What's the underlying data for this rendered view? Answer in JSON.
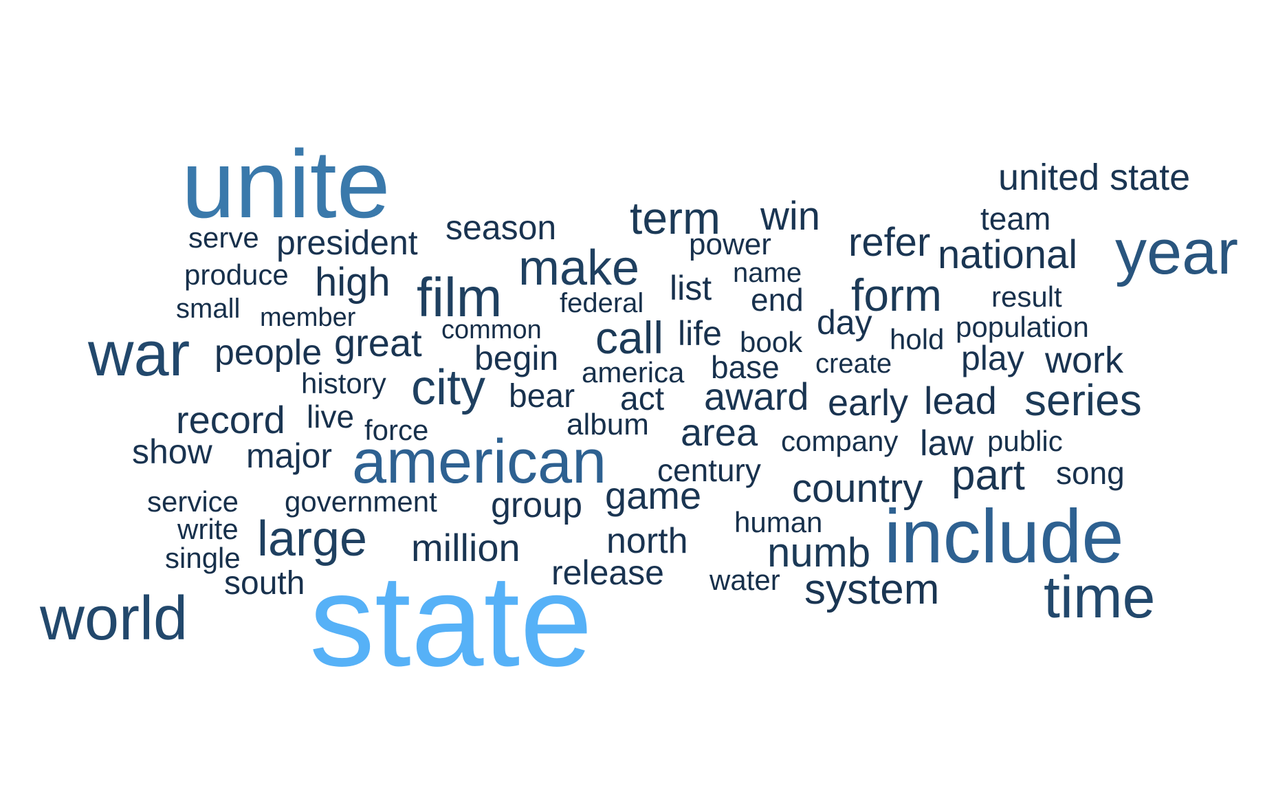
{
  "words": [
    {
      "text": "state",
      "color": "#56b1f7"
    },
    {
      "text": "unite",
      "color": "#3a79ab"
    },
    {
      "text": "include",
      "color": "#2e6191"
    },
    {
      "text": "american",
      "color": "#2e6191"
    },
    {
      "text": "year",
      "color": "#29557e"
    },
    {
      "text": "war",
      "color": "#22486c"
    },
    {
      "text": "world",
      "color": "#22486c"
    },
    {
      "text": "time",
      "color": "#22486c"
    },
    {
      "text": "film",
      "color": "#1f4060"
    },
    {
      "text": "make",
      "color": "#1f4060"
    },
    {
      "text": "city",
      "color": "#1f4060"
    },
    {
      "text": "large",
      "color": "#1f4060"
    },
    {
      "text": "call",
      "color": "#1c3a57"
    },
    {
      "text": "term",
      "color": "#1c3a57"
    },
    {
      "text": "form",
      "color": "#1c3a57"
    },
    {
      "text": "series",
      "color": "#1c3a57"
    },
    {
      "text": "numb",
      "color": "#1c3a57"
    },
    {
      "text": "united state",
      "color": "#1a3552"
    },
    {
      "text": "national",
      "color": "#1a3552"
    },
    {
      "text": "refer",
      "color": "#1a3552"
    },
    {
      "text": "win",
      "color": "#1a3552"
    },
    {
      "text": "high",
      "color": "#1a3552"
    },
    {
      "text": "part",
      "color": "#1a3552"
    },
    {
      "text": "country",
      "color": "#1a3552"
    },
    {
      "text": "system",
      "color": "#1a3552"
    },
    {
      "text": "million",
      "color": "#1a3552"
    },
    {
      "text": "game",
      "color": "#1a3552"
    },
    {
      "text": "area",
      "color": "#1a3552"
    },
    {
      "text": "award",
      "color": "#1a3552"
    },
    {
      "text": "great",
      "color": "#1a3552"
    },
    {
      "text": "record",
      "color": "#1a3552"
    },
    {
      "text": "season",
      "color": "#193350"
    },
    {
      "text": "president",
      "color": "#193350"
    },
    {
      "text": "people",
      "color": "#193350"
    },
    {
      "text": "major",
      "color": "#193350"
    },
    {
      "text": "show",
      "color": "#193350"
    },
    {
      "text": "lead",
      "color": "#193350"
    },
    {
      "text": "early",
      "color": "#193350"
    },
    {
      "text": "work",
      "color": "#193350"
    },
    {
      "text": "play",
      "color": "#193350"
    },
    {
      "text": "release",
      "color": "#193350"
    },
    {
      "text": "north",
      "color": "#193350"
    },
    {
      "text": "group",
      "color": "#193350"
    },
    {
      "text": "begin",
      "color": "#193350"
    },
    {
      "text": "law",
      "color": "#193350"
    },
    {
      "text": "day",
      "color": "#193350"
    },
    {
      "text": "team",
      "color": "#18314d"
    },
    {
      "text": "power",
      "color": "#18314d"
    },
    {
      "text": "list",
      "color": "#18314d"
    },
    {
      "text": "life",
      "color": "#18314d"
    },
    {
      "text": "base",
      "color": "#18314d"
    },
    {
      "text": "bear",
      "color": "#18314d"
    },
    {
      "text": "act",
      "color": "#18314d"
    },
    {
      "text": "century",
      "color": "#18314d"
    },
    {
      "text": "south",
      "color": "#18314d"
    },
    {
      "text": "song",
      "color": "#18314d"
    },
    {
      "text": "end",
      "color": "#18314d"
    },
    {
      "text": "result",
      "color": "#18314d"
    },
    {
      "text": "population",
      "color": "#18314d"
    },
    {
      "text": "produce",
      "color": "#17304b"
    },
    {
      "text": "serve",
      "color": "#17304b"
    },
    {
      "text": "small",
      "color": "#17304b"
    },
    {
      "text": "history",
      "color": "#17304b"
    },
    {
      "text": "live",
      "color": "#17304b"
    },
    {
      "text": "force",
      "color": "#17304b"
    },
    {
      "text": "album",
      "color": "#17304b"
    },
    {
      "text": "federal",
      "color": "#17304b"
    },
    {
      "text": "name",
      "color": "#17304b"
    },
    {
      "text": "book",
      "color": "#17304b"
    },
    {
      "text": "hold",
      "color": "#17304b"
    },
    {
      "text": "america",
      "color": "#17304b"
    },
    {
      "text": "company",
      "color": "#17304b"
    },
    {
      "text": "public",
      "color": "#17304b"
    },
    {
      "text": "service",
      "color": "#17304b"
    },
    {
      "text": "government",
      "color": "#17304b"
    },
    {
      "text": "write",
      "color": "#17304b"
    },
    {
      "text": "single",
      "color": "#17304b"
    },
    {
      "text": "human",
      "color": "#17304b"
    },
    {
      "text": "water",
      "color": "#17304b"
    },
    {
      "text": "create",
      "color": "#17304b"
    },
    {
      "text": "member",
      "color": "#162e49"
    },
    {
      "text": "common",
      "color": "#162e49"
    }
  ]
}
